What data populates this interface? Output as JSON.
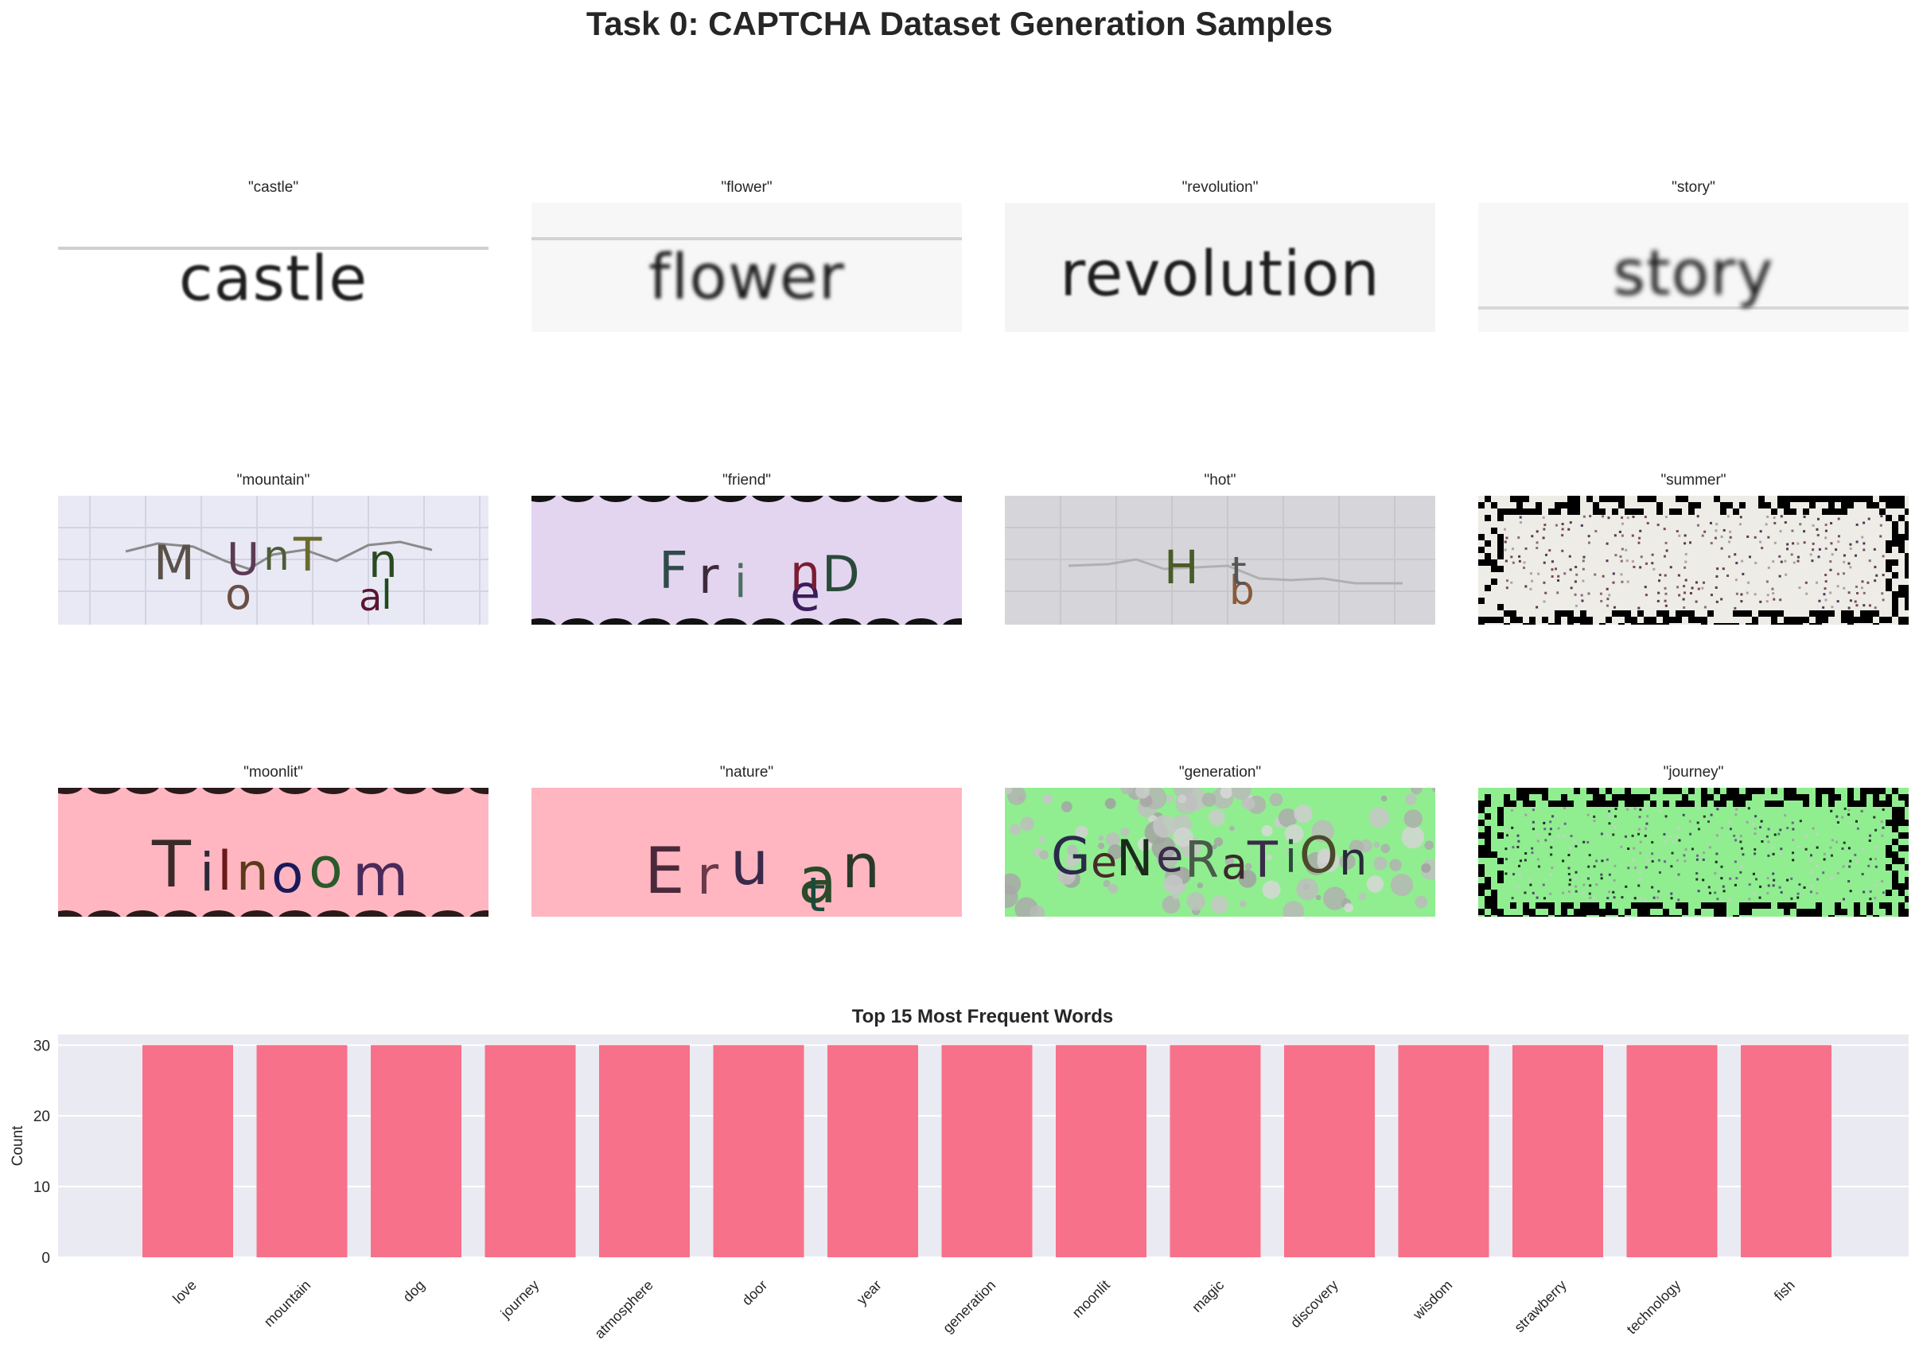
{
  "title": "Task 0: CAPTCHA Dataset Generation Samples",
  "samples": [
    {
      "label": "\"castle\"",
      "text": "castle",
      "bg": "#ffffff"
    },
    {
      "label": "\"flower\"",
      "text": "flower",
      "bg": "#f7f7f7"
    },
    {
      "label": "\"revolution\"",
      "text": "revolution",
      "bg": "#f5f5f5"
    },
    {
      "label": "\"story\"",
      "text": "story",
      "bg": "#f7f7f7"
    },
    {
      "label": "\"mountain\"",
      "text": "",
      "bg": "#e9e9f5"
    },
    {
      "label": "\"friend\"",
      "text": "",
      "bg": "#e3d5f0"
    },
    {
      "label": "\"hot\"",
      "text": "",
      "bg": "#d6d6da"
    },
    {
      "label": "\"summer\"",
      "text": "",
      "bg": "#eeece6"
    },
    {
      "label": "\"moonlit\"",
      "text": "",
      "bg": "#ffb6c1"
    },
    {
      "label": "\"nature\"",
      "text": "",
      "bg": "#ffb6c1"
    },
    {
      "label": "\"generation\"",
      "text": "",
      "bg": "#90ee90"
    },
    {
      "label": "\"journey\"",
      "text": "",
      "bg": "#90ee90"
    }
  ],
  "distorted_glyphs": {
    "mountain": [
      "M",
      "o",
      "U",
      "n",
      "T",
      "a",
      "l",
      "n"
    ],
    "friend": [
      "F",
      "r",
      "i",
      "e",
      "n",
      "D"
    ],
    "hot": [
      "H",
      "b",
      "t"
    ],
    "moonlit": [
      "T",
      "i",
      "l",
      "n",
      "o",
      "o",
      "m"
    ],
    "nature": [
      "E",
      "r",
      "u",
      "a",
      "n",
      "t"
    ],
    "generation": [
      "G",
      "e",
      "N",
      "e",
      "R",
      "a",
      "T",
      "i",
      "O",
      "n"
    ]
  },
  "chart_data": {
    "type": "bar",
    "title": "Top 15 Most Frequent Words",
    "xlabel": "",
    "ylabel": "Count",
    "categories": [
      "love",
      "mountain",
      "dog",
      "journey",
      "atmosphere",
      "door",
      "year",
      "generation",
      "moonlit",
      "magic",
      "discovery",
      "wisdom",
      "strawberry",
      "technology",
      "fish"
    ],
    "values": [
      30,
      30,
      30,
      30,
      30,
      30,
      30,
      30,
      30,
      30,
      30,
      30,
      30,
      30,
      30
    ],
    "ylim": [
      0,
      31.5
    ],
    "yticks": [
      0,
      10,
      20,
      30
    ],
    "grid": true,
    "bar_color": "#f7718a",
    "plot_bg": "#eaeaf2"
  }
}
